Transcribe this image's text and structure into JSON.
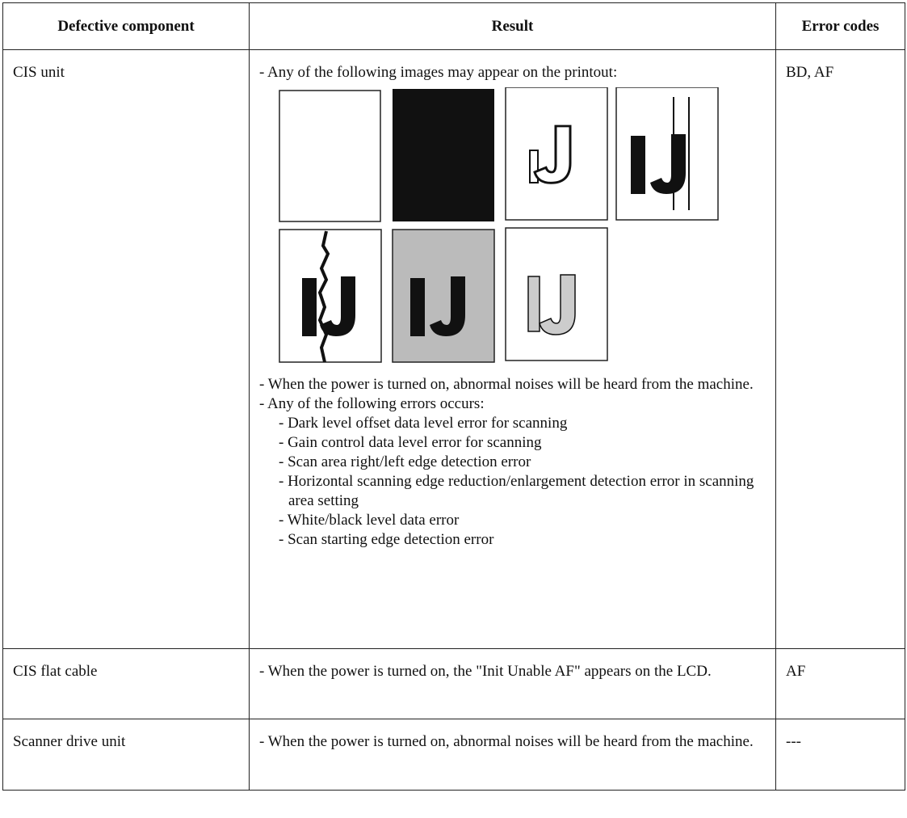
{
  "table": {
    "headers": [
      "Defective component",
      "Result",
      "Error codes"
    ],
    "rows": [
      {
        "component": "CIS unit",
        "result": {
          "lead": "- Any of the following images may appear on the printout:",
          "notes": [
            "- When the power is turned on, abnormal noises will be heard from the machine.",
            "- Any of the following errors occurs:"
          ],
          "errors": [
            "- Dark level offset data level error for scanning",
            "- Gain control data level error for scanning",
            "- Scan area right/left edge detection error",
            "- Horizontal scanning edge reduction/enlargement detection error in scanning area setting",
            "- White/black level data error",
            "- Scan starting edge detection error"
          ]
        },
        "codes": "BD, AF"
      },
      {
        "component": "CIS flat cable",
        "result": {
          "notes": [
            "- When the power is turned on, the \"Init Unable AF\" appears on the LCD."
          ]
        },
        "codes": "AF"
      },
      {
        "component": "Scanner drive unit",
        "result": {
          "notes": [
            "- When the power is turned on, abnormal noises will be heard from the machine."
          ]
        },
        "codes": "---"
      }
    ]
  }
}
